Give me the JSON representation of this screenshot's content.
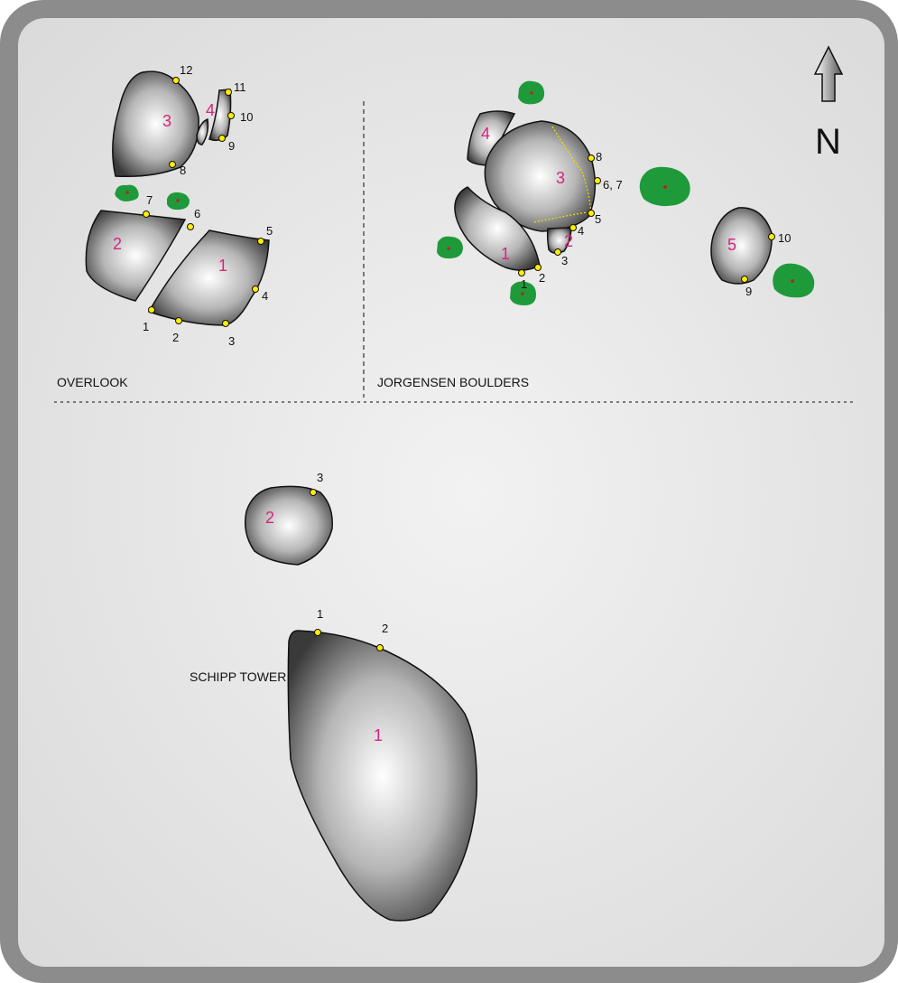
{
  "compass": {
    "label": "N"
  },
  "areas": {
    "overlook": {
      "title": "OVERLOOK",
      "boulders": [
        "1",
        "2",
        "3",
        "4"
      ],
      "points": [
        "1",
        "2",
        "3",
        "4",
        "5",
        "6",
        "7",
        "8",
        "9",
        "10",
        "11",
        "12"
      ]
    },
    "jorgensen": {
      "title": "JORGENSEN BOULDERS",
      "boulders": [
        "1",
        "2",
        "3",
        "4",
        "5"
      ],
      "points": [
        "1",
        "2",
        "3",
        "4",
        "5",
        "6, 7",
        "8",
        "9",
        "10"
      ]
    },
    "schipp": {
      "title": "SCHIPP TOWER",
      "boulders": [
        "1",
        "2"
      ],
      "points": [
        "1",
        "2",
        "3"
      ]
    }
  },
  "colors": {
    "frame": "#8a8a8a",
    "panel": "#e3e3e3",
    "boulder_label": "#d6247d",
    "problem_dot": "#ffee00",
    "tree": "#1f9a3a",
    "tree_center": "#b0282a"
  },
  "icons": {
    "tree": "tree-icon",
    "north_arrow": "north-arrow-icon",
    "problem": "problem-marker-icon"
  }
}
